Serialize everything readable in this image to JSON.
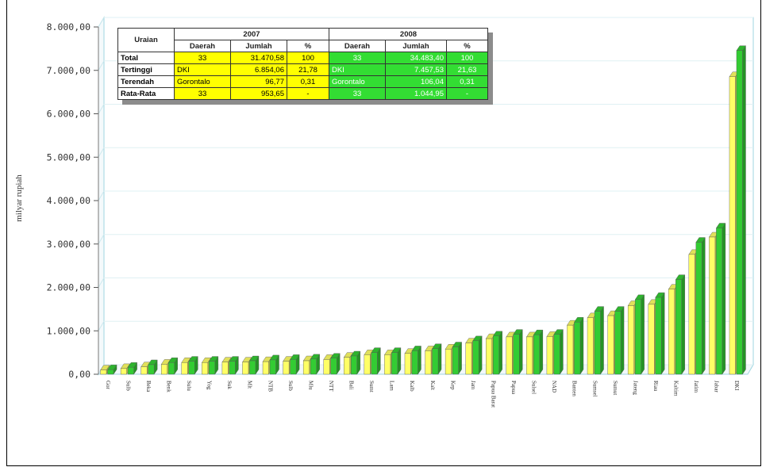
{
  "chart_data": {
    "type": "bar",
    "ylabel": "milyar rupiah",
    "ylim": [
      0,
      8000
    ],
    "yticks": [
      "0,00",
      "1.000,00",
      "2.000,00",
      "3.000,00",
      "4.000,00",
      "5.000,00",
      "6.000,00",
      "7.000,00",
      "8.000,00"
    ],
    "ytick_values": [
      0,
      1000,
      2000,
      3000,
      4000,
      5000,
      6000,
      7000,
      8000
    ],
    "grid": true,
    "categories": [
      "Gor",
      "Sulb",
      "Beka",
      "Benk",
      "Sulu",
      "Yog",
      "Suk",
      "Mlt",
      "NTB",
      "Sulb",
      "Mlu",
      "NTT",
      "Bali",
      "Sumt",
      "Lam",
      "Kalb",
      "Kalt",
      "Kep",
      "Jam",
      "Papua Barat",
      "Papua",
      "Sulsel",
      "NAD",
      "Banten",
      "Sumsel",
      "Sumut",
      "Jateng",
      "Riau",
      "Kaltim",
      "Jatim",
      "Jabar",
      "DKI"
    ],
    "series": [
      {
        "color": "#ffff66",
        "values": [
          96.77,
          130,
          170,
          230,
          270,
          270,
          280,
          280,
          290,
          300,
          310,
          340,
          390,
          450,
          450,
          480,
          540,
          580,
          720,
          820,
          860,
          860,
          870,
          1130,
          1300,
          1350,
          1580,
          1610,
          1960,
          2760,
          3160,
          6854.06
        ]
      },
      {
        "color": "#33cc33",
        "values": [
          106.04,
          160,
          220,
          270,
          300,
          300,
          300,
          310,
          330,
          340,
          350,
          370,
          420,
          500,
          500,
          540,
          590,
          630,
          770,
          880,
          920,
          910,
          920,
          1200,
          1450,
          1450,
          1720,
          1770,
          2180,
          3040,
          3370,
          7457.53
        ]
      }
    ]
  },
  "summary_table": {
    "corner": "Uraian",
    "year_2007": "2007",
    "year_2008": "2008",
    "col_daerah": "Daerah",
    "col_jumlah": "Jumlah",
    "col_pct": "%",
    "rows": [
      {
        "label": "Total",
        "d07": "33",
        "j07": "31.470,58",
        "p07": "100",
        "d08": "33",
        "j08": "34.483,40",
        "p08": "100"
      },
      {
        "label": "Tertinggi",
        "d07": "DKI",
        "j07": "6.854,06",
        "p07": "21,78",
        "d08": "DKI",
        "j08": "7.457,53",
        "p08": "21,63"
      },
      {
        "label": "Terendah",
        "d07": "Gorontalo",
        "j07": "96,77",
        "p07": "0,31",
        "d08": "Gorontalo",
        "j08": "106,04",
        "p08": "0,31"
      },
      {
        "label": "Rata-Rata",
        "d07": "33",
        "j07": "953,65",
        "p07": "-",
        "d08": "33",
        "j08": "1.044,95",
        "p08": "-"
      }
    ]
  }
}
